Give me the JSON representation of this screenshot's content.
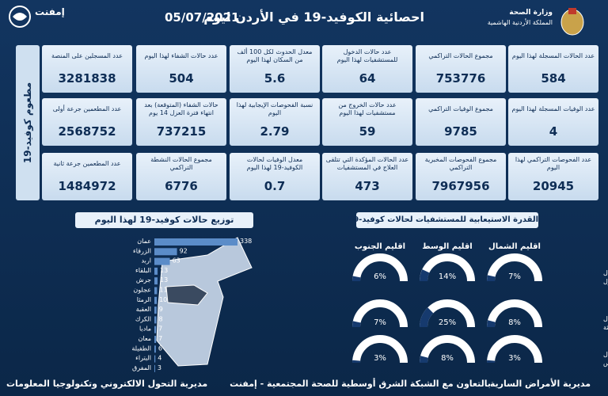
{
  "header": {
    "title": "احصائية الكوفيد-19 في الأردن ليوم",
    "date": "05/07/2021",
    "ministry": "وزارة الصحة",
    "kingdom": "المملكة الأردنية الهاشمية",
    "logo": "إمفنت"
  },
  "stats": {
    "rows": [
      [
        {
          "label": "عدد الحالات المسجلة لهذا اليوم",
          "value": 584
        },
        {
          "label": "مجموع الحالات التراكمي",
          "value": 753776
        },
        {
          "label": "عدد حالات الدخول للمستشفيات لهذا اليوم",
          "value": 64
        },
        {
          "label": "معدل الحدوث لكل 100 ألف من السكان لهذا اليوم",
          "value": 5.6
        },
        {
          "label": "عدد حالات الشفاء لهذا اليوم",
          "value": 504
        }
      ],
      [
        {
          "label": "عدد الوفيات المسجلة لهذا اليوم",
          "value": 4
        },
        {
          "label": "مجموع الوفيات التراكمي",
          "value": 9785
        },
        {
          "label": "عدد حالات الخروج من مستشفيات لهذا اليوم",
          "value": 59
        },
        {
          "label": "نسبة الفحوصات الإيجابية لهذا اليوم",
          "value": 2.79
        },
        {
          "label": "حالات الشفاء (المتوقعة) بعد انتهاء فترة العزل 14 يوم",
          "value": 737215
        }
      ],
      [
        {
          "label": "عدد الفحوصات التراكمي لهذا اليوم",
          "value": 20945
        },
        {
          "label": "مجموع الفحوصات المخبرية التراكمي",
          "value": 7967956
        },
        {
          "label": "عدد الحالات المؤكدة التي تتلقى العلاج في المستشفيات",
          "value": 473
        },
        {
          "label": "معدل الوفيات لحالات الكوفيد-19 لهذا اليوم",
          "value": 0.7
        },
        {
          "label": "مجموع الحالات النشطة التراكمي",
          "value": 6776
        }
      ]
    ]
  },
  "vaccination": {
    "title": "مطعوم كوفيد-19",
    "items": [
      {
        "label": "عدد المسجلين على المنصة",
        "value": 3281838
      },
      {
        "label": "عدد المطعمين جرعة أولى",
        "value": 2568752
      },
      {
        "label": "عدد المطعمين جرعة ثانية",
        "value": 1484972
      }
    ]
  },
  "chart_data": [
    {
      "type": "bar",
      "title": "توزيع حالات كوفيد-19 لهذا اليوم",
      "color": "#5b8cc8",
      "categories": [
        "عمان",
        "الزرقاء",
        "اربد",
        "البلقاء",
        "جرش",
        "عجلون",
        "الرمثا",
        "العقبة",
        "الكرك",
        "مادبا",
        "معان",
        "الطفيلة",
        "البتراء",
        "المفرق"
      ],
      "values": [
        338,
        92,
        63,
        13,
        13,
        11,
        10,
        9,
        8,
        7,
        7,
        6,
        4,
        3
      ]
    },
    {
      "type": "gauge",
      "title": "القدرة الاستيعابية للمستشفيات لحالات كوفيد-19",
      "color": "#163a6e",
      "ylim": [
        0,
        100
      ],
      "categories": [
        "اقليم الشمال",
        "اقليم الوسط",
        "اقليم الجنوب"
      ],
      "series": [
        {
          "name": "نسبة اشغال أسرة العزل",
          "values": [
            7,
            14,
            6
          ],
          "value_labels": [
            "7%",
            "14%",
            "6%"
          ]
        },
        {
          "name": "نسبة اشغال أسرة العناية الحثيثة",
          "values": [
            8,
            25,
            7
          ],
          "value_labels": [
            "8%",
            "25%",
            "7%"
          ]
        },
        {
          "name": "نسبة اشغال أجهزة التنفس",
          "values": [
            3,
            8,
            3
          ],
          "value_labels": [
            "3%",
            "8%",
            "3%"
          ]
        }
      ]
    }
  ],
  "footer": {
    "right": "مديرية الأمراض السارية",
    "center": "بالتعاون مع الشبكة الشرق أوسطية للصحة المجتمعية - إمفنت",
    "left": "مديرية التحول الالكتروني وتكنولوجيا المعلومات"
  }
}
